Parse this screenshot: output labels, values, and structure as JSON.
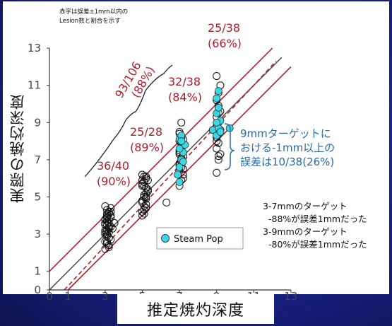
{
  "y_title": "実際の焼灼深度",
  "x_title": "推定焼灼深度",
  "note_lines": [
    "赤字は誤差±1mm以内の",
    "Lesion数と割合を示す"
  ],
  "legend": {
    "label": "Steam Pop",
    "color": "#3ad8e6"
  },
  "groups": [
    {
      "line1": "36/40",
      "line2": "(90%)"
    },
    {
      "line1": "25/28",
      "line2": "(89%)"
    },
    {
      "line1": "32/38",
      "line2": "(84%)"
    },
    {
      "line1": "25/38",
      "line2": "(66%)"
    }
  ],
  "bracket_label": {
    "line1": "93/106",
    "line2": "(88%)"
  },
  "blue_note": [
    "9mmターゲットに",
    "おける-1mm以上の",
    "誤差は10/38(26%)"
  ],
  "summary_lines": [
    "3-7mmのターゲット",
    "-88%が誤差1mmだった",
    "3-9mmのターゲット",
    "-80%が誤差1mmだった"
  ],
  "chart_data": {
    "type": "scatter",
    "title": "",
    "xlabel": "推定焼灼深度",
    "ylabel": "実際の焼灼深度",
    "xlim": [
      0,
      13
    ],
    "ylim": [
      0,
      13
    ],
    "x_ticks": [
      0,
      1,
      3,
      5,
      7,
      9,
      11,
      13
    ],
    "y_ticks": [
      0,
      1,
      3,
      5,
      7,
      9,
      11,
      13
    ],
    "lines": [
      {
        "name": "identity",
        "style": "solid",
        "color": "#555555",
        "points": [
          [
            0,
            0
          ],
          [
            12.5,
            12.5
          ]
        ]
      },
      {
        "name": "regression",
        "style": "dashed",
        "color": "#b01c2a",
        "points": [
          [
            0.8,
            0
          ],
          [
            12.2,
            12.3
          ]
        ]
      },
      {
        "name": "+1mm",
        "style": "solid",
        "color": "#b01c2a",
        "points": [
          [
            0,
            1
          ],
          [
            12.0,
            13.0
          ]
        ]
      },
      {
        "name": "-1mm",
        "style": "solid",
        "color": "#b01c2a",
        "points": [
          [
            1,
            0
          ],
          [
            13.0,
            12.0
          ]
        ]
      }
    ],
    "series": [
      {
        "name": "lesions",
        "color": "#111111",
        "x": [
          3.0,
          3.1,
          3.2,
          3.0,
          3.1,
          3.3,
          3.2,
          3.0,
          3.1,
          3.2,
          3.3,
          3.0,
          3.1,
          3.2,
          3.4,
          3.0,
          3.1,
          3.3,
          3.2,
          3.1,
          3.0,
          3.2,
          3.3,
          3.1,
          3.2,
          3.0,
          3.1,
          3.3,
          3.2,
          3.1,
          3.0,
          3.2,
          3.1,
          3.3,
          3.2,
          3.0,
          3.1,
          3.2,
          3.1,
          3.5,
          5.0,
          5.1,
          5.2,
          5.0,
          5.1,
          5.2,
          5.3,
          5.0,
          5.1,
          5.2,
          5.0,
          5.1,
          5.2,
          5.3,
          5.0,
          5.1,
          5.2,
          5.0,
          5.1,
          5.2,
          5.3,
          5.0,
          5.1,
          5.2,
          5.1,
          5.0,
          5.2,
          6.3,
          7.0,
          7.1,
          7.2,
          7.0,
          7.1,
          7.0,
          7.1,
          7.2,
          7.0,
          7.1,
          7.2,
          7.0,
          7.1,
          7.0,
          7.2,
          7.1,
          7.0,
          7.1,
          7.2,
          7.0,
          7.1,
          7.2,
          7.0,
          7.1,
          7.0,
          7.1,
          9.0,
          9.1,
          9.2,
          9.0,
          9.1,
          9.0,
          9.1,
          9.2,
          9.0,
          9.1,
          9.0,
          9.2,
          9.1,
          9.0,
          9.1,
          9.2,
          9.0,
          9.1,
          9.0,
          8.8,
          9.1
        ],
        "y": [
          2.2,
          2.5,
          2.8,
          3.0,
          3.2,
          3.4,
          3.6,
          3.8,
          4.0,
          4.2,
          4.4,
          2.6,
          2.9,
          3.1,
          3.3,
          3.5,
          3.7,
          3.9,
          4.1,
          4.3,
          4.5,
          2.4,
          2.7,
          3.0,
          3.3,
          3.6,
          3.9,
          4.2,
          2.3,
          2.6,
          3.1,
          3.4,
          3.7,
          4.0,
          2.8,
          3.2,
          3.5,
          3.8,
          4.1,
          3.6,
          4.0,
          4.3,
          4.6,
          4.8,
          5.0,
          5.2,
          5.4,
          5.6,
          5.8,
          6.0,
          4.2,
          4.5,
          4.9,
          5.3,
          5.7,
          6.1,
          4.4,
          4.7,
          5.1,
          5.5,
          5.9,
          6.2,
          4.1,
          5.0,
          5.6,
          5.9,
          6.1,
          4.7,
          5.6,
          5.9,
          6.2,
          6.4,
          6.6,
          6.8,
          7.0,
          7.2,
          7.4,
          7.6,
          7.8,
          8.0,
          8.2,
          8.4,
          6.5,
          6.9,
          7.3,
          7.7,
          8.1,
          8.5,
          9.0,
          6.0,
          6.7,
          7.1,
          7.5,
          7.9,
          6.3,
          7.0,
          7.3,
          7.6,
          7.9,
          8.2,
          8.4,
          8.6,
          8.8,
          9.0,
          9.3,
          9.6,
          9.9,
          10.2,
          10.6,
          11.0,
          11.5,
          7.2,
          8.0,
          8.6,
          9.5
        ]
      },
      {
        "name": "Steam Pop",
        "color": "#3ad8e6",
        "x": [
          6.9,
          7.0,
          7.1,
          7.2,
          7.3,
          7.0,
          7.1,
          7.0,
          7.2,
          7.0,
          7.1,
          8.8,
          9.0,
          9.1,
          9.2,
          9.0,
          9.1,
          9.0,
          9.1,
          9.2,
          9.0,
          9.7
        ],
        "y": [
          6.2,
          6.6,
          7.0,
          7.4,
          7.8,
          8.1,
          8.3,
          5.8,
          6.9,
          7.6,
          8.0,
          8.6,
          8.3,
          8.7,
          9.1,
          9.5,
          9.8,
          10.3,
          10.7,
          8.5,
          9.0,
          8.7
        ]
      }
    ]
  }
}
